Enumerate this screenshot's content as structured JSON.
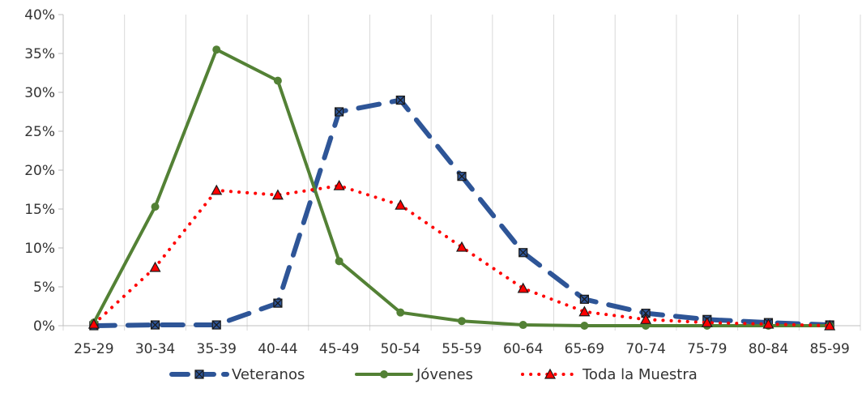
{
  "chart_data": {
    "type": "line",
    "title": "",
    "xlabel": "",
    "ylabel": "",
    "categories": [
      "25-29",
      "30-34",
      "35-39",
      "40-44",
      "45-49",
      "50-54",
      "55-59",
      "60-64",
      "65-69",
      "70-74",
      "75-79",
      "80-84",
      "85-99"
    ],
    "ylim": [
      0,
      40
    ],
    "yticks": [
      0,
      5,
      10,
      15,
      20,
      25,
      30,
      35,
      40
    ],
    "ytick_labels": [
      "0%",
      "5%",
      "10%",
      "15%",
      "20%",
      "25%",
      "30%",
      "35%",
      "40%"
    ],
    "grid": "vertical category lines",
    "legend_position": "bottom",
    "series": [
      {
        "name": "Veteranos",
        "color": "#2e5597",
        "style": "dashed",
        "marker": "square-x",
        "values": [
          0.0,
          0.1,
          0.1,
          2.9,
          27.5,
          29.0,
          19.2,
          9.4,
          3.4,
          1.6,
          0.8,
          0.4,
          0.1
        ]
      },
      {
        "name": "Jóvenes",
        "color": "#538135",
        "style": "solid",
        "marker": "circle",
        "values": [
          0.4,
          15.3,
          35.5,
          31.5,
          8.3,
          1.7,
          0.6,
          0.1,
          0.0,
          0.0,
          0.0,
          0.0,
          0.0
        ]
      },
      {
        "name": "Toda la Muestra",
        "color": "#ff0000",
        "style": "dotted",
        "marker": "triangle",
        "values": [
          0.2,
          7.5,
          17.4,
          16.8,
          18.0,
          15.5,
          10.1,
          4.8,
          1.8,
          0.8,
          0.4,
          0.2,
          0.0
        ]
      }
    ]
  }
}
